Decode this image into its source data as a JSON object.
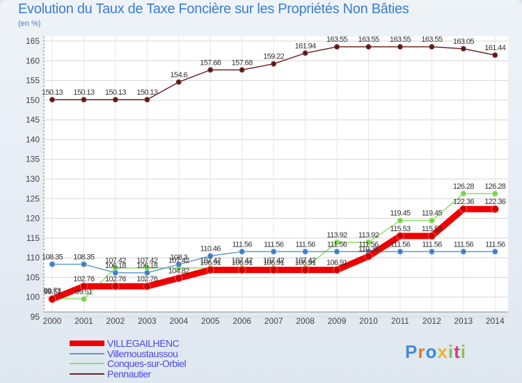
{
  "chart_data": {
    "type": "line",
    "title": "Evolution du Taux de Taxe Foncière sur les Propriétés Non Bâties",
    "ylabel": "(en %)",
    "xlabel": "",
    "x": [
      "2000",
      "2001",
      "2002",
      "2003",
      "2004",
      "2005",
      "2006",
      "2007",
      "2008",
      "2009",
      "2010",
      "2011",
      "2012",
      "2013",
      "2014"
    ],
    "ylim": [
      95,
      165
    ],
    "yticks": [
      95,
      100,
      105,
      110,
      115,
      120,
      125,
      130,
      135,
      140,
      145,
      150,
      155,
      160,
      165
    ],
    "grid": true,
    "legend_position": "bottom-left",
    "series": [
      {
        "name": "VILLEGAILHENC",
        "color": "#ee0000",
        "values": [
          99.51,
          102.76,
          102.76,
          102.76,
          104.82,
          106.91,
          106.91,
          106.91,
          106.91,
          106.91,
          110.36,
          115.53,
          115.53,
          122.36,
          122.36
        ],
        "labels": [
          "99.51",
          "102.76",
          "102.76",
          "102.76",
          "104.82",
          "106.91",
          "106.91",
          "106.91",
          "106.91",
          "106.91",
          "110.36",
          "115.53",
          "115.53",
          "122.36",
          "122.36"
        ]
      },
      {
        "name": "Villemoustaussou",
        "color": "#5f9ac9",
        "values": [
          108.35,
          108.35,
          106.18,
          106.18,
          108.3,
          110.46,
          111.56,
          111.56,
          111.56,
          111.56,
          111.56,
          111.56,
          111.56,
          111.56,
          111.56
        ],
        "labels": [
          "108.35",
          "108.35",
          "106.18",
          "106.18",
          "108.3",
          "110.46",
          "111.56",
          "111.56",
          "111.56",
          "111.56",
          "111.56",
          "111.56",
          "111.56",
          "111.56",
          "111.56"
        ]
      },
      {
        "name": "Conques-sur-Orbiel",
        "color": "#8fdc6a",
        "values": [
          99.73,
          99.51,
          107.42,
          107.42,
          107.42,
          107.42,
          107.42,
          107.42,
          107.42,
          113.92,
          113.92,
          119.45,
          119.45,
          126.28,
          126.28
        ],
        "labels": [
          "99.73",
          "99.51",
          "107.42",
          "107.42",
          "107.42",
          "107.42",
          "107.42",
          "107.42",
          "107.42",
          "113.92",
          "113.92",
          "119.45",
          "119.45",
          "126.28",
          "126.28"
        ]
      },
      {
        "name": "Pennautier",
        "color": "#6e2323",
        "values": [
          150.13,
          150.13,
          150.13,
          150.13,
          154.6,
          157.68,
          157.68,
          159.22,
          161.94,
          163.55,
          163.55,
          163.55,
          163.55,
          163.05,
          161.44
        ],
        "labels": [
          "150.13",
          "150.13",
          "150.13",
          "150.13",
          "154.6",
          "157.68",
          "157.68",
          "159.22",
          "161.94",
          "163.55",
          "163.55",
          "163.55",
          "163.55",
          "163.05",
          "161.44"
        ]
      }
    ]
  },
  "legend": {
    "items": [
      {
        "label": "VILLEGAILHENC"
      },
      {
        "label": "Villemoustaussou"
      },
      {
        "label": "Conques-sur-Orbiel"
      },
      {
        "label": "Pennautier"
      }
    ]
  },
  "logo": {
    "text": "Proxiti"
  },
  "colors": {
    "title": "#3a7ed1",
    "grid": "#d5d5d5",
    "axis": "#888888"
  }
}
